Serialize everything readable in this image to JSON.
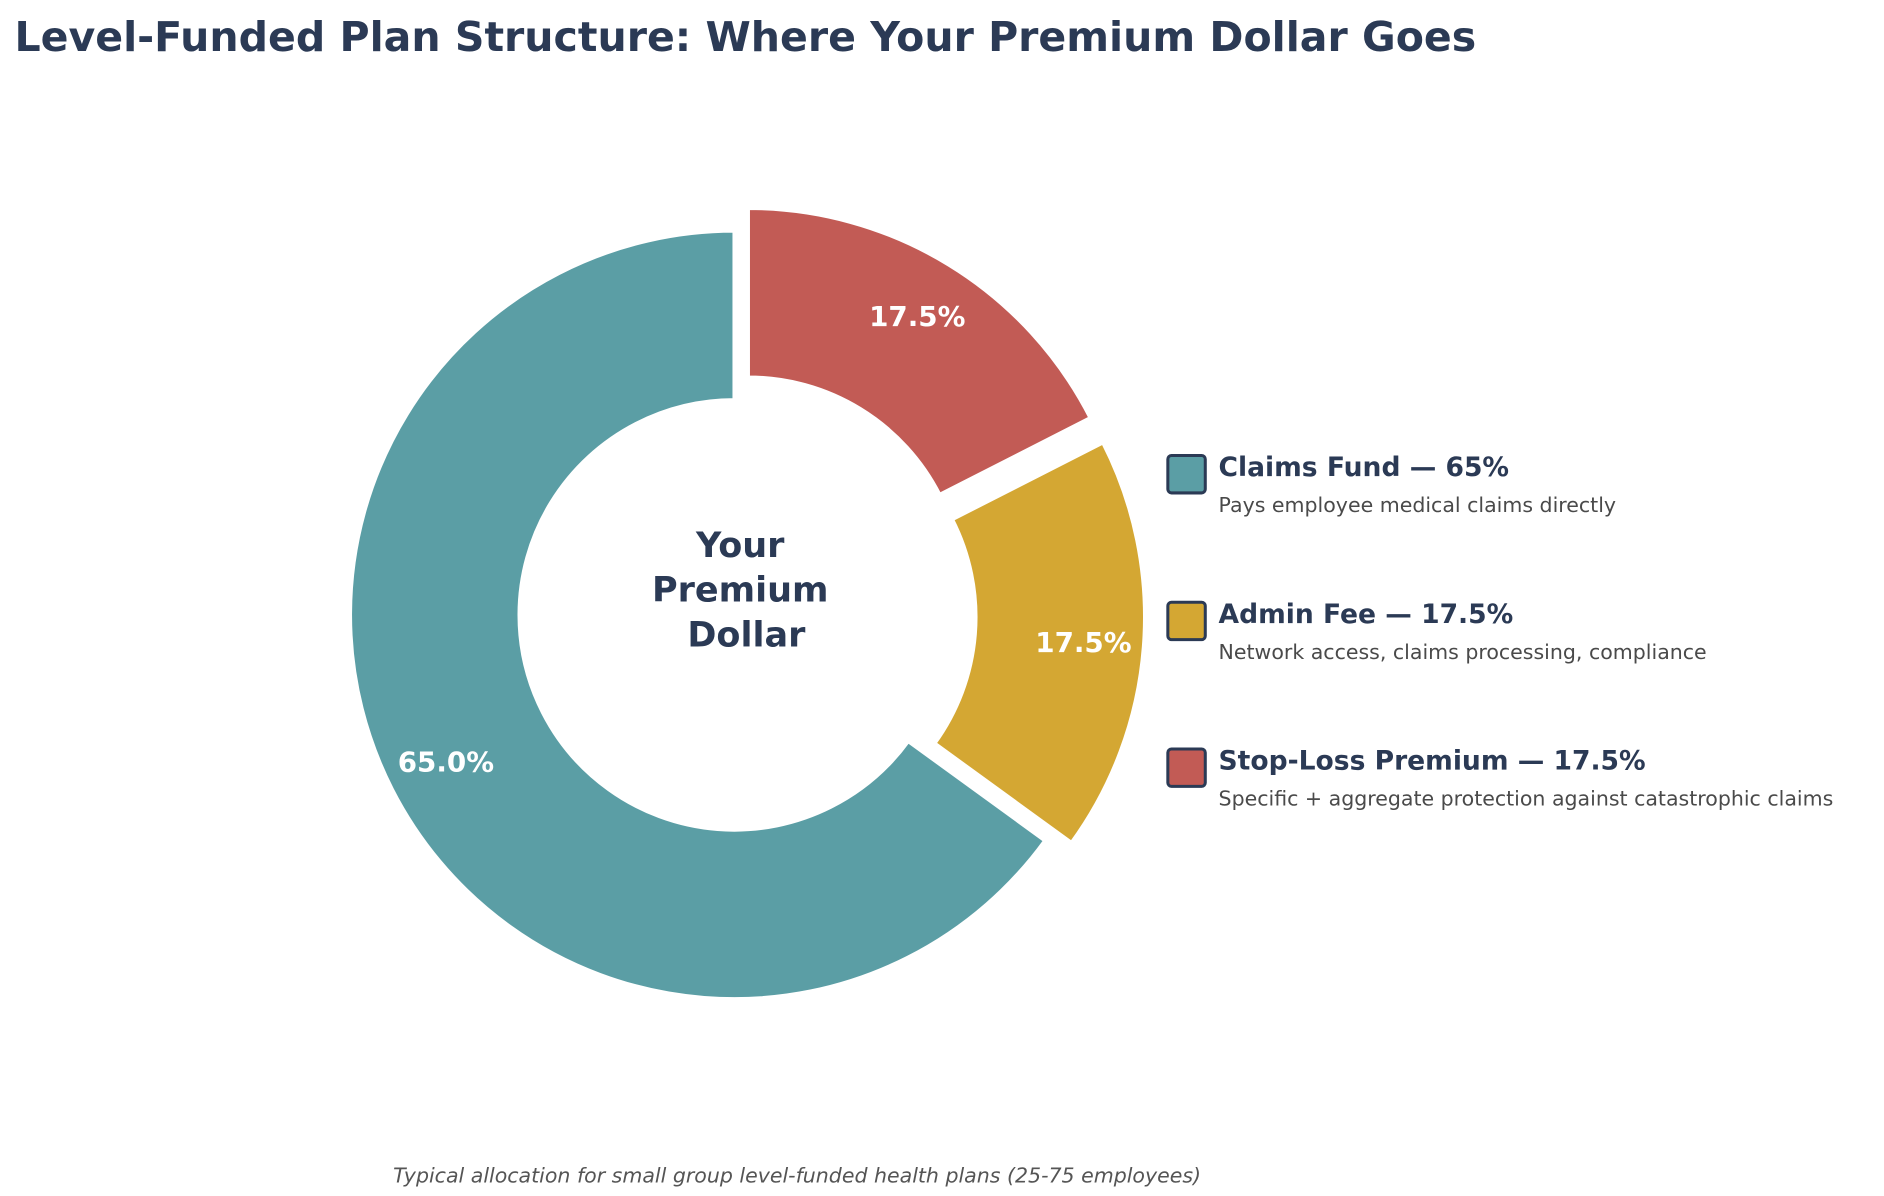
{
  "chart_data": {
    "type": "pie",
    "style": "donut",
    "title": "Level-Funded Plan Structure: Where Your Premium Dollar Goes",
    "center_label": [
      "Your",
      "Premium",
      "Dollar"
    ],
    "footnote": "Typical allocation for small group level-funded health plans (25-75 employees)",
    "legend_placement": "right",
    "slices": [
      {
        "name": "Claims Fund",
        "value": 65,
        "label": "65.0%",
        "color": "#5b9ea5",
        "exploded": false,
        "legend_title": "Claims Fund  —  65%",
        "legend_desc": "Pays employee medical claims directly"
      },
      {
        "name": "Admin Fee",
        "value": 17.5,
        "label": "17.5%",
        "color": "#d4a733",
        "exploded": true,
        "legend_title": "Admin Fee  —  17.5%",
        "legend_desc": "Network access, claims processing, compliance"
      },
      {
        "name": "Stop-Loss Premium",
        "value": 17.5,
        "label": "17.5%",
        "color": "#c25b55",
        "exploded": true,
        "legend_title": "Stop-Loss Premium  —  17.5%",
        "legend_desc": "Specific + aggregate protection against catastrophic claims"
      }
    ],
    "start_angle_deg": 90,
    "direction": "counterclockwise"
  }
}
